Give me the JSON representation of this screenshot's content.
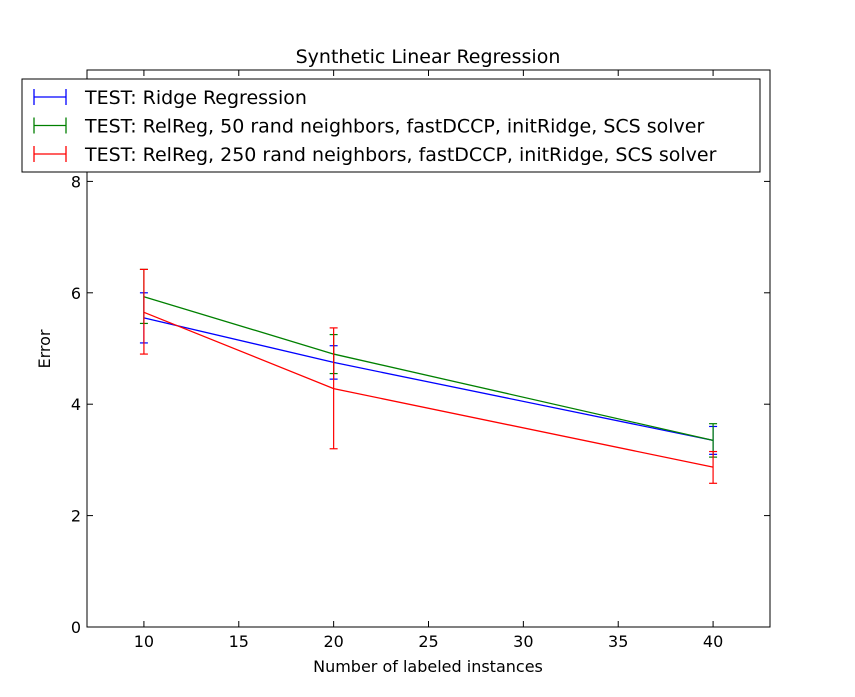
{
  "chart_data": {
    "type": "line",
    "title": "Synthetic Linear Regression",
    "xlabel": "Number of labeled instances",
    "ylabel": "Error",
    "xlim": [
      7,
      43
    ],
    "ylim": [
      0,
      10
    ],
    "x_ticks": [
      10,
      15,
      20,
      25,
      30,
      35,
      40
    ],
    "y_ticks": [
      0,
      2,
      4,
      6,
      8
    ],
    "grid": false,
    "legend_position": "top-left",
    "x": [
      10,
      20,
      40
    ],
    "series": [
      {
        "name": "TEST: Ridge Regression",
        "color": "#0000ff",
        "values": [
          5.55,
          4.75,
          3.35
        ],
        "err_low": [
          5.1,
          4.45,
          3.1
        ],
        "err_high": [
          6.0,
          5.05,
          3.6
        ]
      },
      {
        "name": "TEST: RelReg, 50 rand neighbors, fastDCCP, initRidge, SCS solver",
        "color": "#008000",
        "values": [
          5.93,
          4.9,
          3.35
        ],
        "err_low": [
          5.45,
          4.55,
          3.05
        ],
        "err_high": [
          6.42,
          5.25,
          3.65
        ]
      },
      {
        "name": "TEST: RelReg, 250 rand neighbors, fastDCCP, initRidge, SCS solver",
        "color": "#ff0000",
        "values": [
          5.65,
          4.28,
          2.87
        ],
        "err_low": [
          4.9,
          3.2,
          2.58
        ],
        "err_high": [
          6.42,
          5.37,
          3.15
        ]
      }
    ]
  }
}
